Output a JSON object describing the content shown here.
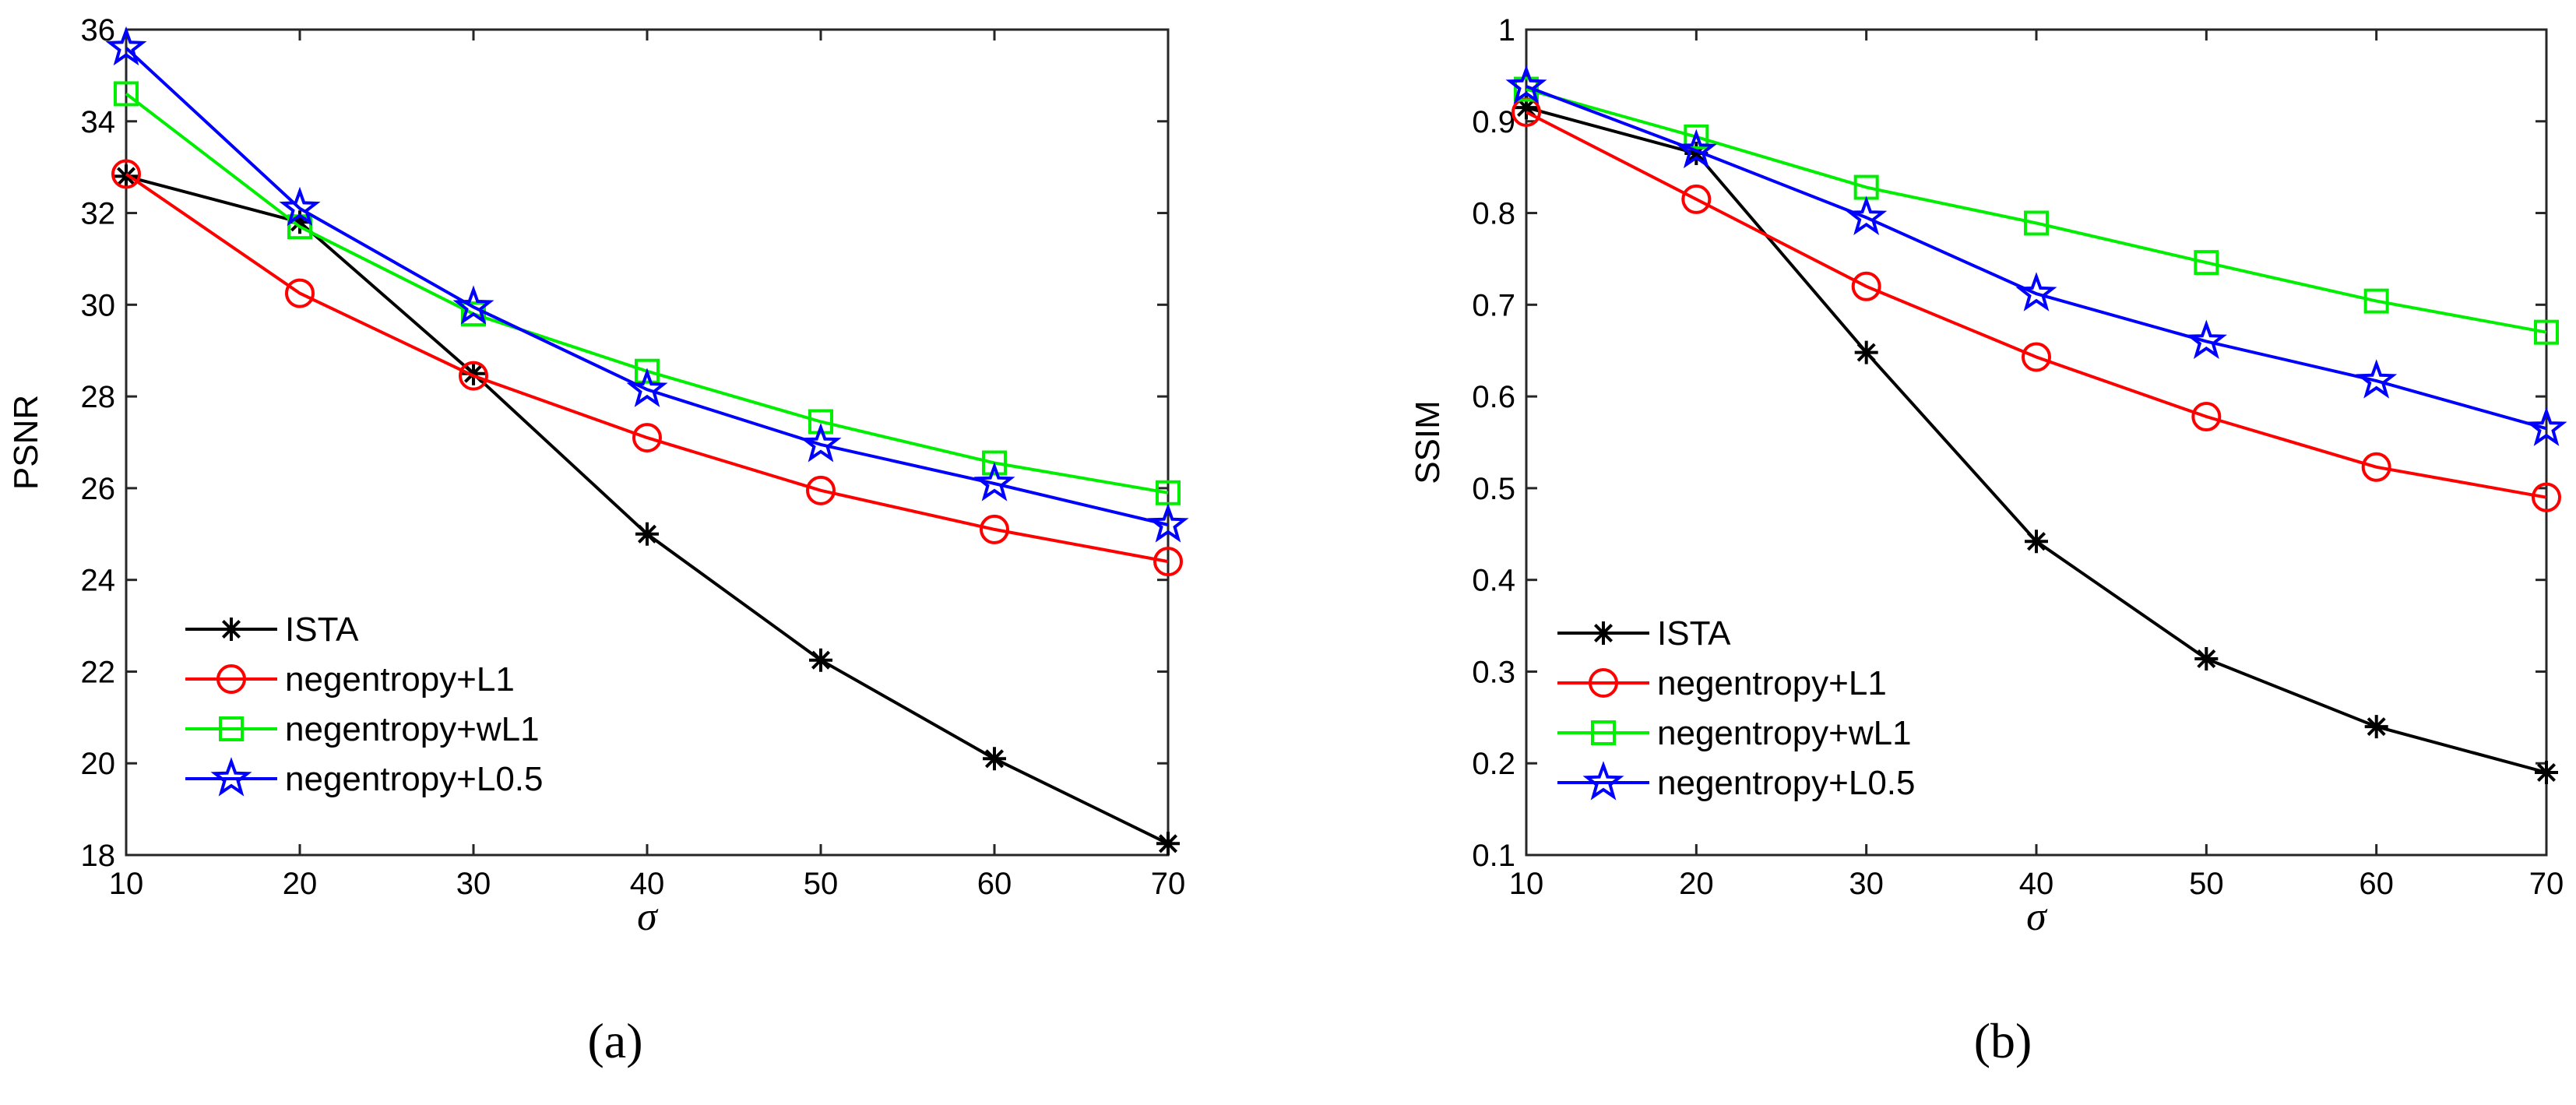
{
  "chart_data": [
    {
      "type": "line",
      "panel_label": "(a)",
      "xlabel": "σ",
      "ylabel": "PSNR",
      "x": [
        10,
        20,
        30,
        40,
        50,
        60,
        70
      ],
      "xlim": [
        10,
        70
      ],
      "ylim": [
        18,
        36
      ],
      "xticks": [
        "10",
        "20",
        "30",
        "40",
        "50",
        "60",
        "70"
      ],
      "yticks": [
        "18",
        "20",
        "22",
        "24",
        "26",
        "28",
        "30",
        "32",
        "34",
        "36"
      ],
      "grid": false,
      "legend_position": "bottom-left",
      "series": [
        {
          "name": "ISTA",
          "color": "#000000",
          "marker": "asterisk",
          "values": [
            32.8,
            31.8,
            28.5,
            25.0,
            22.25,
            20.1,
            18.25
          ]
        },
        {
          "name": "negentropy+L1",
          "color": "#ff0000",
          "marker": "circle",
          "values": [
            32.85,
            30.25,
            28.45,
            27.1,
            25.95,
            25.1,
            24.4
          ]
        },
        {
          "name": "negentropy+wL1",
          "color": "#00ee00",
          "marker": "square",
          "values": [
            34.6,
            31.7,
            29.8,
            28.55,
            27.45,
            26.55,
            25.9
          ]
        },
        {
          "name": "negentropy+L0.5",
          "color": "#0000ff",
          "marker": "star",
          "values": [
            35.6,
            32.1,
            29.95,
            28.15,
            26.95,
            26.1,
            25.2
          ]
        }
      ]
    },
    {
      "type": "line",
      "panel_label": "(b)",
      "xlabel": "σ",
      "ylabel": "SSIM",
      "x": [
        10,
        20,
        30,
        40,
        50,
        60,
        70
      ],
      "xlim": [
        10,
        70
      ],
      "ylim": [
        0.1,
        1.0
      ],
      "xticks": [
        "10",
        "20",
        "30",
        "40",
        "50",
        "60",
        "70"
      ],
      "yticks": [
        "0.1",
        "0.2",
        "0.3",
        "0.4",
        "0.5",
        "0.6",
        "0.7",
        "0.8",
        "0.9",
        "1"
      ],
      "grid": false,
      "legend_position": "bottom-left",
      "series": [
        {
          "name": "ISTA",
          "color": "#000000",
          "marker": "asterisk",
          "values": [
            0.915,
            0.865,
            0.648,
            0.442,
            0.314,
            0.24,
            0.19
          ]
        },
        {
          "name": "negentropy+L1",
          "color": "#ff0000",
          "marker": "circle",
          "values": [
            0.91,
            0.815,
            0.72,
            0.643,
            0.578,
            0.523,
            0.49
          ]
        },
        {
          "name": "negentropy+wL1",
          "color": "#00ee00",
          "marker": "square",
          "values": [
            0.935,
            0.883,
            0.828,
            0.789,
            0.746,
            0.704,
            0.67
          ]
        },
        {
          "name": "negentropy+L0.5",
          "color": "#0000ff",
          "marker": "star",
          "values": [
            0.938,
            0.868,
            0.795,
            0.712,
            0.66,
            0.617,
            0.565
          ]
        }
      ]
    }
  ]
}
